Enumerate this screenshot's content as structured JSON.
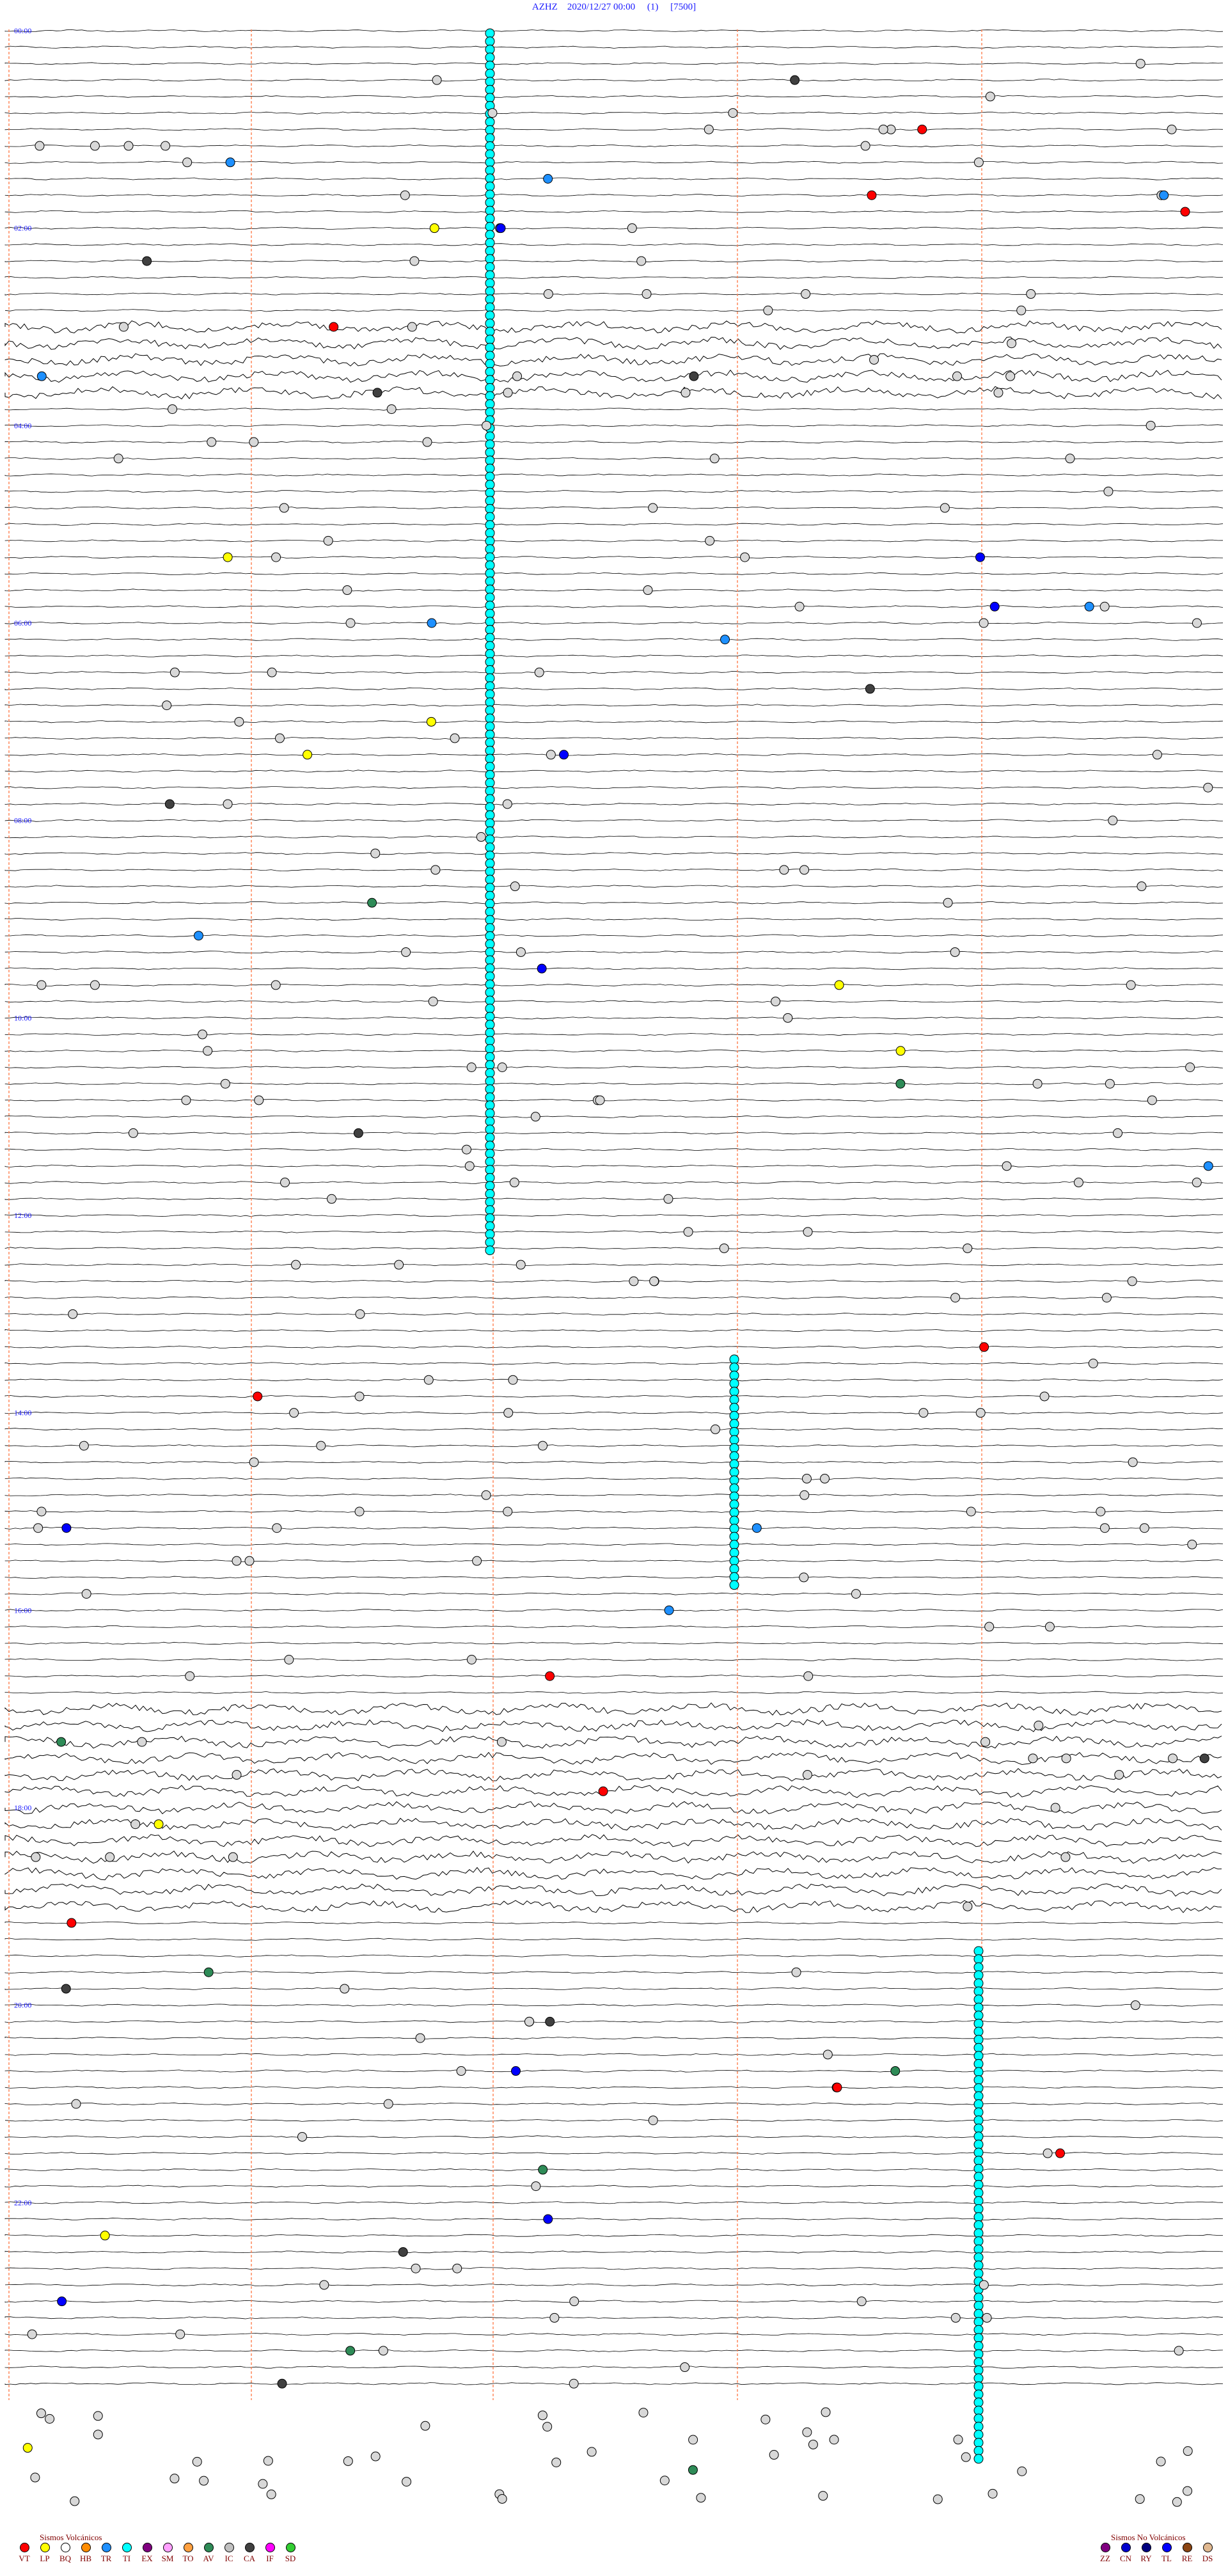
{
  "header": {
    "station": "AZHZ",
    "datetime": "2020/12/27 00:00",
    "channel": "(1)",
    "scale": "[7500]"
  },
  "hour_labels": [
    "00:00",
    "02:00",
    "04:00",
    "06:00",
    "08:00",
    "10:00",
    "12:00",
    "14:00",
    "16:00",
    "18:00",
    "20:00",
    "22:00"
  ],
  "legends": {
    "volcanic": {
      "title": "Sismos Volcánicos",
      "items": [
        {
          "code": "VT",
          "color": "#ff0000"
        },
        {
          "code": "LP",
          "color": "#ffff00"
        },
        {
          "code": "BQ",
          "color": "#ffffff"
        },
        {
          "code": "HB",
          "color": "#ff8c00"
        },
        {
          "code": "TR",
          "color": "#1e90ff"
        },
        {
          "code": "TI",
          "color": "#00ffff"
        },
        {
          "code": "EX",
          "color": "#800080"
        },
        {
          "code": "SM",
          "color": "#ffa0ff"
        },
        {
          "code": "TO",
          "color": "#ffa040"
        },
        {
          "code": "AV",
          "color": "#2e8b57"
        },
        {
          "code": "IC",
          "color": "#c0c0c0"
        },
        {
          "code": "CA",
          "color": "#404040"
        },
        {
          "code": "IF",
          "color": "#ff00ff"
        },
        {
          "code": "SD",
          "color": "#32cd32"
        }
      ]
    },
    "non_volcanic": {
      "title": "Sismos No Volcánicos",
      "items": [
        {
          "code": "ZZ",
          "color": "#800080"
        },
        {
          "code": "CN",
          "color": "#0000cd"
        },
        {
          "code": "RY",
          "color": "#000080"
        },
        {
          "code": "TL",
          "color": "#0000ff"
        },
        {
          "code": "RE",
          "color": "#8b4513"
        },
        {
          "code": "DS",
          "color": "#e0b890"
        }
      ]
    }
  },
  "colors": {
    "header_text": "#1a1aff",
    "hour_label": "#1a1aff",
    "trace": "#000000",
    "marker_line": "#ff7f50",
    "ti_event": "#00ffff",
    "empty_event": "#d8d8d8",
    "legend_text": "#800000"
  }
}
